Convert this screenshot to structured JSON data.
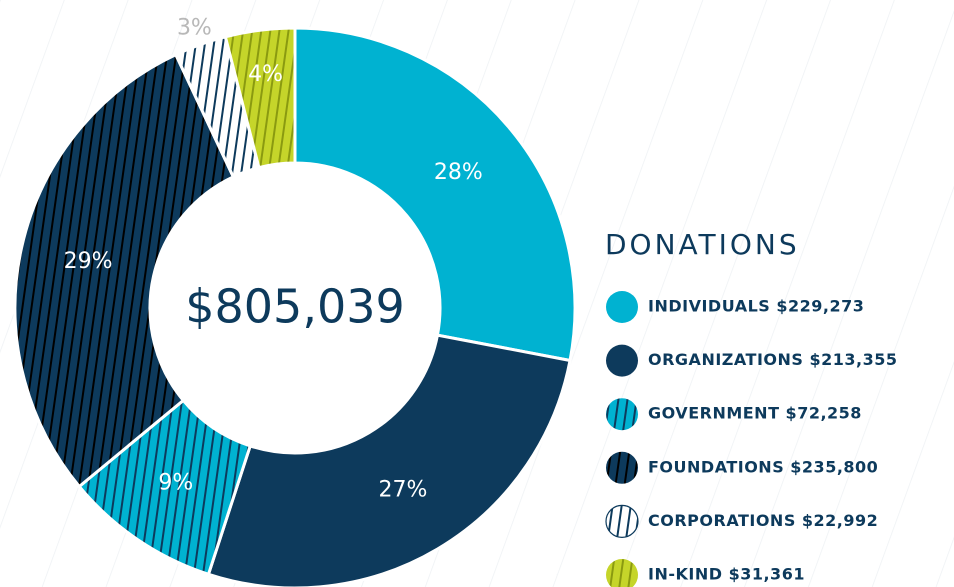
{
  "chart_data": {
    "type": "donut",
    "legend_title": "DONATIONS",
    "center_label": "$805,039",
    "categories": [
      "INDIVIDUALS $229,273",
      "ORGANIZATIONS $213,355",
      "GOVERNMENT $72,258",
      "FOUNDATIONS $235,800",
      "CORPORATIONS $22,992",
      "IN-KIND $31,361"
    ],
    "values": [
      28,
      27,
      9,
      29,
      3,
      4
    ],
    "value_labels": [
      "28%",
      "27%",
      "9%",
      "29%",
      "3%",
      "4%"
    ],
    "colors": [
      "#00b2d1",
      "#0d3a5c",
      "#00b2d1",
      "#0d3a5c",
      "#ffffff",
      "#c5d52a"
    ],
    "stripes": [
      null,
      null,
      "#0d3a5c",
      "#000000",
      "#0d3a5c",
      "#8a9a10"
    ],
    "legend": "right"
  }
}
